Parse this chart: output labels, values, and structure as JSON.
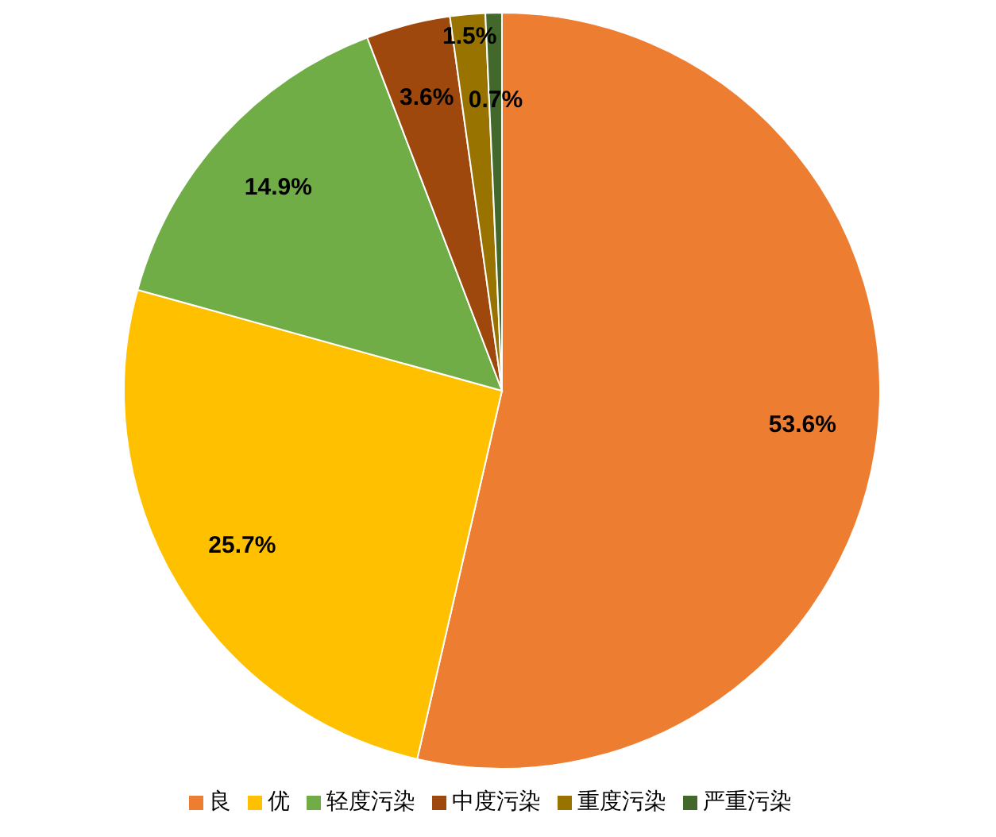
{
  "chart_data": {
    "type": "pie",
    "categories": [
      "良",
      "优",
      "轻度污染",
      "中度污染",
      "重度污染",
      "严重污染"
    ],
    "values": [
      53.6,
      25.7,
      14.9,
      3.6,
      1.5,
      0.7
    ],
    "colors": [
      "#ed7d31",
      "#ffc000",
      "#70ad47",
      "#9e480e",
      "#997300",
      "#43682b"
    ],
    "value_labels": [
      "53.6%",
      "25.7%",
      "14.9%",
      "3.6%",
      "1.5%",
      "0.7%"
    ],
    "legend": "bottom"
  }
}
